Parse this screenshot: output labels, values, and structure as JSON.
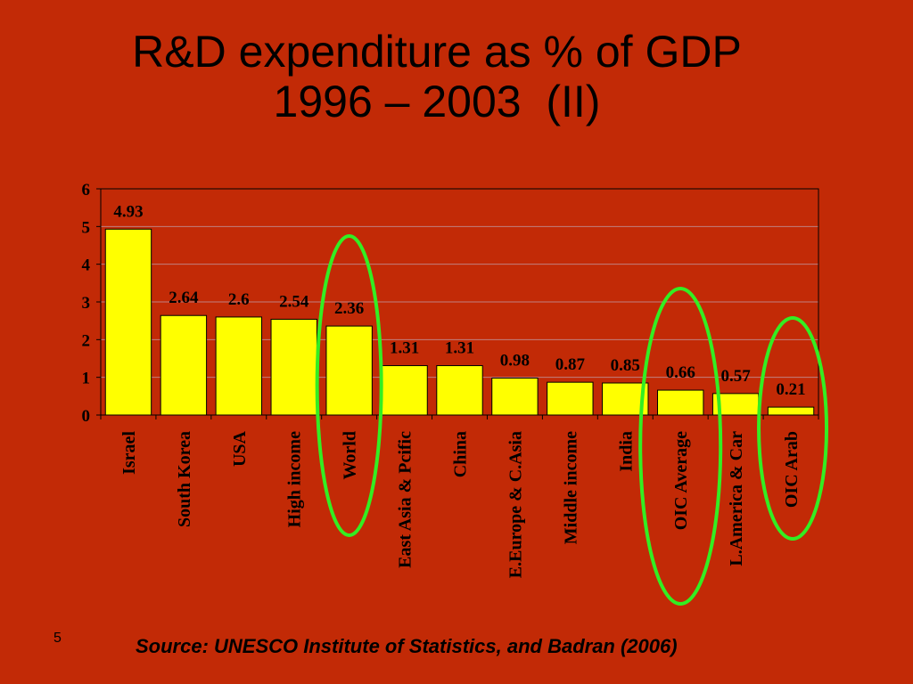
{
  "slide": {
    "title_line1": "R&D expenditure as % of GDP",
    "title_line2": "1996 – 2003  (II)",
    "slide_number": "5",
    "source": "Source: UNESCO Institute of Statistics, and Badran (2006)"
  },
  "colors": {
    "background": "#c22a06",
    "bar_fill": "#ffff00",
    "highlight_ellipse": "#33ee22",
    "gridline": "#c08080"
  },
  "chart_data": {
    "type": "bar",
    "title": "R&D expenditure as % of GDP 1996 – 2003  (II)",
    "xlabel": "",
    "ylabel": "",
    "ylim": [
      0,
      6
    ],
    "yticks": [
      0,
      1,
      2,
      3,
      4,
      5,
      6
    ],
    "grid": true,
    "categories": [
      "Israel",
      "South Korea",
      "USA",
      "High income",
      "World",
      "East Asia & Pcific",
      "China",
      "E.Europe & C.Asia",
      "Middle income",
      "India",
      "OIC Average",
      "L.America & Car",
      "OIC Arab"
    ],
    "values": [
      4.93,
      2.64,
      2.6,
      2.54,
      2.36,
      1.31,
      1.31,
      0.98,
      0.87,
      0.85,
      0.66,
      0.57,
      0.21
    ],
    "data_labels": [
      "4.93",
      "2.64",
      "2.6",
      "2.54",
      "2.36",
      "1.31",
      "1.31",
      "0.98",
      "0.87",
      "0.85",
      "0.66",
      "0.57",
      "0.21"
    ],
    "highlighted_categories": [
      "World",
      "OIC Average",
      "OIC Arab"
    ]
  }
}
